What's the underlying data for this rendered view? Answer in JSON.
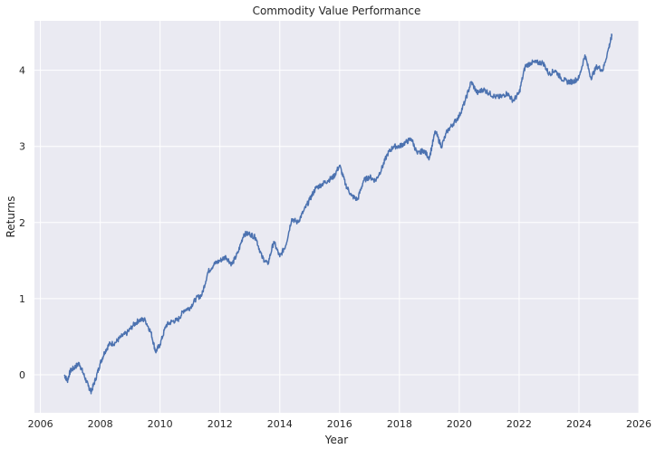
{
  "chart_data": {
    "type": "line",
    "title": "Commodity Value Performance",
    "xlabel": "Year",
    "ylabel": "Returns",
    "xlim": [
      2005.8,
      2026.0
    ],
    "ylim": [
      -0.5,
      4.65
    ],
    "x_ticks": [
      2006,
      2008,
      2010,
      2012,
      2014,
      2016,
      2018,
      2020,
      2022,
      2024,
      2026
    ],
    "y_ticks": [
      0,
      1,
      2,
      3,
      4
    ],
    "grid": true,
    "legend": "none",
    "colors": {
      "background": "#eaeaf2",
      "grid": "#ffffff",
      "line": "#4c72b0"
    },
    "series": [
      {
        "x": [
          2006.8,
          2006.9,
          2007.0,
          2007.15,
          2007.3,
          2007.45,
          2007.6,
          2007.7,
          2007.85,
          2008.0,
          2008.15,
          2008.3,
          2008.5,
          2008.7,
          2008.9,
          2009.1,
          2009.3,
          2009.5,
          2009.7,
          2009.85,
          2010.0,
          2010.2,
          2010.4,
          2010.6,
          2010.8,
          2011.0,
          2011.2,
          2011.4,
          2011.6,
          2011.8,
          2012.0,
          2012.2,
          2012.4,
          2012.6,
          2012.8,
          2013.0,
          2013.2,
          2013.4,
          2013.6,
          2013.8,
          2014.0,
          2014.2,
          2014.4,
          2014.6,
          2014.8,
          2015.0,
          2015.2,
          2015.4,
          2015.6,
          2015.8,
          2016.0,
          2016.2,
          2016.4,
          2016.6,
          2016.8,
          2017.0,
          2017.2,
          2017.4,
          2017.6,
          2017.8,
          2018.0,
          2018.2,
          2018.4,
          2018.6,
          2018.8,
          2019.0,
          2019.2,
          2019.4,
          2019.6,
          2019.8,
          2020.0,
          2020.2,
          2020.4,
          2020.6,
          2020.8,
          2021.0,
          2021.2,
          2021.4,
          2021.6,
          2021.8,
          2022.0,
          2022.2,
          2022.4,
          2022.6,
          2022.8,
          2023.0,
          2023.2,
          2023.4,
          2023.6,
          2023.8,
          2024.0,
          2024.2,
          2024.4,
          2024.6,
          2024.8,
          2025.0,
          2025.1
        ],
        "values": [
          0.0,
          -0.08,
          0.05,
          0.1,
          0.15,
          0.0,
          -0.15,
          -0.22,
          -0.05,
          0.15,
          0.3,
          0.4,
          0.42,
          0.5,
          0.55,
          0.65,
          0.72,
          0.72,
          0.55,
          0.3,
          0.4,
          0.65,
          0.7,
          0.72,
          0.85,
          0.88,
          1.0,
          1.05,
          1.35,
          1.45,
          1.5,
          1.55,
          1.45,
          1.6,
          1.85,
          1.85,
          1.8,
          1.55,
          1.45,
          1.75,
          1.55,
          1.7,
          2.05,
          2.0,
          2.15,
          2.3,
          2.45,
          2.5,
          2.55,
          2.6,
          2.75,
          2.5,
          2.35,
          2.3,
          2.55,
          2.6,
          2.55,
          2.7,
          2.9,
          3.0,
          3.0,
          3.05,
          3.1,
          2.9,
          2.95,
          2.85,
          3.2,
          3.0,
          3.2,
          3.3,
          3.4,
          3.6,
          3.85,
          3.7,
          3.75,
          3.7,
          3.65,
          3.65,
          3.7,
          3.6,
          3.7,
          4.05,
          4.1,
          4.1,
          4.1,
          3.95,
          4.0,
          3.9,
          3.85,
          3.85,
          3.9,
          4.2,
          3.9,
          4.05,
          4.0,
          4.3,
          4.45
        ]
      }
    ]
  }
}
